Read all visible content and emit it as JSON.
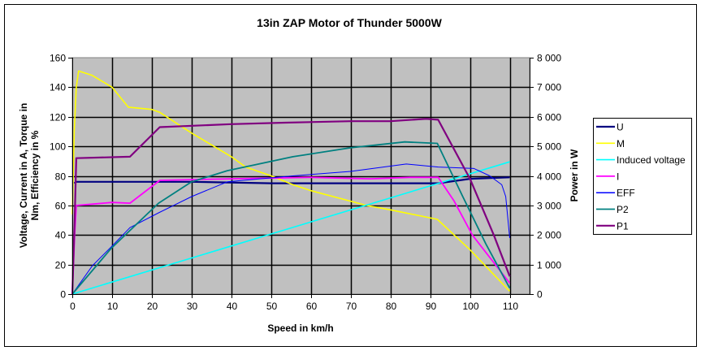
{
  "chart_data": {
    "type": "line",
    "title": "13in ZAP Motor of Thunder 5000W",
    "xlabel": "Speed in km/h",
    "ylabel": "Voltage, Current in A, Torque in Nm, Efficiency in %",
    "y2label": "Power in W",
    "xlim": [
      0,
      115
    ],
    "ylim": [
      0,
      160
    ],
    "y2lim": [
      0,
      8000
    ],
    "x_ticks": [
      "0",
      "10",
      "20",
      "30",
      "40",
      "50",
      "60",
      "70",
      "80",
      "90",
      "100",
      "110"
    ],
    "y_ticks": [
      "0",
      "20",
      "40",
      "60",
      "80",
      "100",
      "120",
      "140",
      "160"
    ],
    "y2_ticks": [
      "0",
      "1 000",
      "2 000",
      "3 000",
      "4 000",
      "5 000",
      "6 000",
      "7 000",
      "8 000"
    ],
    "grid": true,
    "legend_position": "right",
    "plot_background": "#c0c0c0",
    "series": [
      {
        "name": "U",
        "color": "#000080",
        "width": 2.2,
        "axis": "left",
        "x": [
          0.5,
          1,
          30,
          50,
          92,
          100,
          110
        ],
        "y": [
          75,
          76,
          76,
          75,
          75,
          78,
          79
        ]
      },
      {
        "name": "M",
        "color": "#ffff00",
        "width": 1.6,
        "axis": "left",
        "x": [
          0,
          0.5,
          1,
          1.6,
          5,
          10,
          14.1,
          20,
          22,
          30,
          40,
          43.6,
          50,
          55.5,
          60,
          74,
          80,
          91.8,
          100,
          110
        ],
        "y": [
          54,
          110,
          140,
          151,
          148,
          140,
          126.5,
          125,
          123,
          109,
          93,
          86,
          80,
          74,
          70,
          60,
          57,
          50.6,
          30,
          2
        ]
      },
      {
        "name": "Induced voltage",
        "color": "#00ffff",
        "width": 1.6,
        "axis": "left",
        "x": [
          0,
          110
        ],
        "y": [
          0,
          89.5
        ]
      },
      {
        "name": "I",
        "color": "#ff00ff",
        "width": 1.8,
        "axis": "left",
        "x": [
          0,
          0.6,
          1,
          10,
          14.5,
          22,
          40,
          60,
          75,
          85,
          92,
          96,
          100.6,
          110
        ],
        "y": [
          0,
          40,
          60,
          62,
          61.5,
          77,
          78,
          79,
          78,
          79,
          79,
          63,
          40,
          7.5
        ]
      },
      {
        "name": "EFF",
        "color": "#0000ff",
        "width": 1,
        "axis": "left",
        "x": [
          0,
          5,
          9.8,
          14.5,
          21.7,
          30,
          39,
          55.5,
          70,
          84,
          92,
          101,
          105,
          108,
          109,
          110
        ],
        "y": [
          0,
          19,
          32,
          45,
          55,
          66,
          76,
          80,
          83,
          88,
          86,
          85,
          80,
          74,
          66,
          38
        ]
      },
      {
        "name": "P2",
        "color": "#008080",
        "width": 1.8,
        "axis": "right",
        "x": [
          0,
          9.8,
          21.7,
          30,
          39,
          55.5,
          70,
          83.6,
          91.8,
          98,
          104,
          110
        ],
        "y": [
          0,
          1550,
          3075,
          3800,
          4175,
          4650,
          4950,
          5150,
          5100,
          3350,
          1700,
          200
        ]
      },
      {
        "name": "P1",
        "color": "#800080",
        "width": 2.2,
        "axis": "right",
        "x": [
          0,
          0.6,
          1,
          14.5,
          22,
          40,
          53.5,
          70,
          80,
          89,
          92,
          100,
          106,
          110
        ],
        "y": [
          0,
          2500,
          4600,
          4650,
          5650,
          5750,
          5800,
          5850,
          5850,
          5930,
          5900,
          3900,
          2000,
          600
        ]
      }
    ]
  }
}
